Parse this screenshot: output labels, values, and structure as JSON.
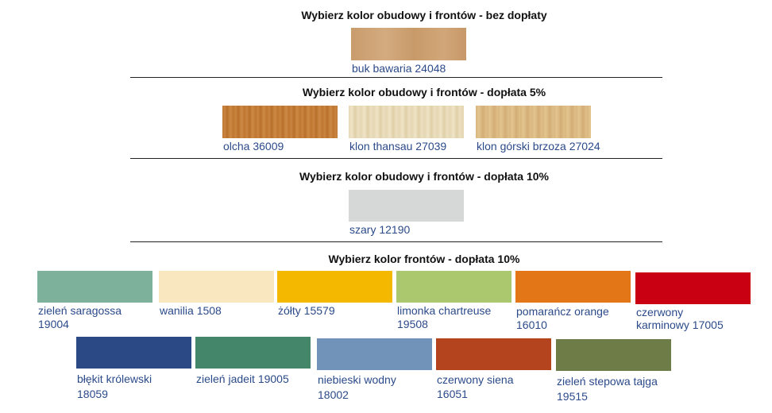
{
  "sections": [
    {
      "title": "Wybierz kolor obudowy i frontów - bez dopłaty"
    },
    {
      "title": "Wybierz kolor obudowy i frontów - dopłata 5%"
    },
    {
      "title": "Wybierz kolor obudowy i frontów - dopłata 10%"
    },
    {
      "title": "Wybierz kolor frontów - dopłata 10%"
    }
  ],
  "swatches": {
    "buk": {
      "label": "buk bawaria 24048",
      "color": "#cda273"
    },
    "olcha": {
      "label": "olcha 36009",
      "color": "#c37c37"
    },
    "klon_thansau": {
      "label": "klon thansau 27039",
      "color": "#e8dbba"
    },
    "klon_gorski": {
      "label": "klon górski brzoza 27024",
      "color": "#dcba83"
    },
    "szary": {
      "label": "szary 12190",
      "color": "#d6d8d7"
    },
    "zielen_saragossa": {
      "line1": "zieleń saragossa",
      "line2": "19004",
      "color": "#7db19c"
    },
    "wanilia": {
      "line1": "wanilia 1508",
      "color": "#f9e8bf"
    },
    "zolty": {
      "line1": "żółty 15579",
      "color": "#f5b800"
    },
    "limonka": {
      "line1": "limonka chartreuse",
      "line2": "19508",
      "color": "#abc86f"
    },
    "pomarancz": {
      "line1": "pomarańcz orange",
      "line2": "16010",
      "color": "#e37718"
    },
    "czerwony_karminowy": {
      "line1": "czerwony",
      "line2": "karminowy 17005",
      "color": "#c90011"
    },
    "blekit": {
      "line1": "błękit królewski",
      "line2": "18059",
      "color": "#2b4a85"
    },
    "zielen_jadeit": {
      "line1": "zieleń jadeit 19005",
      "color": "#44866a"
    },
    "niebieski": {
      "line1": "niebieski wodny",
      "line2": "18002",
      "color": "#7193b9"
    },
    "czerwony_siena": {
      "line1": "czerwony siena",
      "line2": "16051",
      "color": "#b3441e"
    },
    "zielen_stepowa": {
      "line1": "zieleń stepowa tajga",
      "line2": "19515",
      "color": "#6e7d48"
    }
  }
}
